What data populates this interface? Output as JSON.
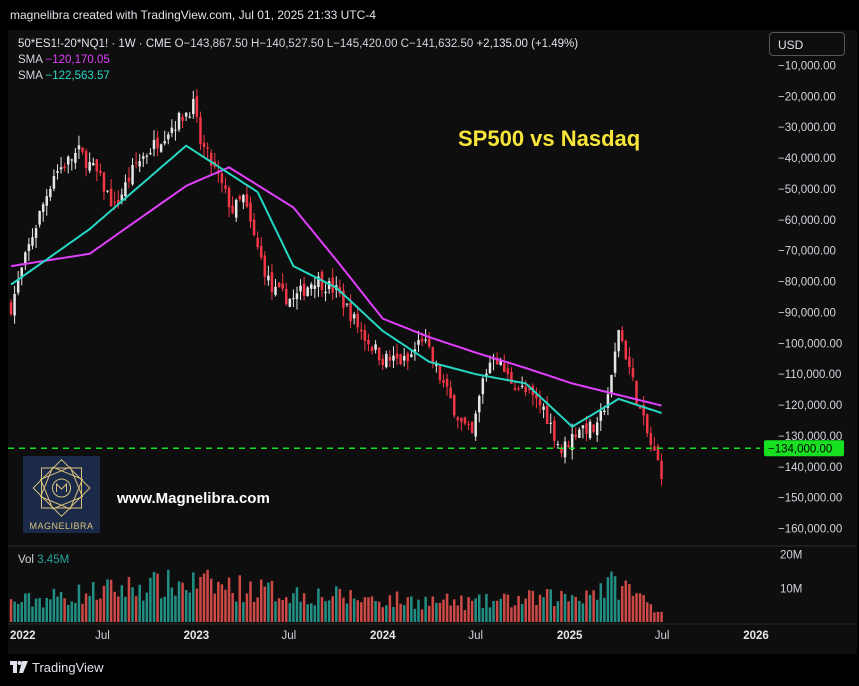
{
  "header": {
    "caption": "magnelibra created with TradingView.com, Jul 01, 2025 21:33 UTC-4"
  },
  "legend": {
    "symbol": "50*ES1!-20*NQ1! · 1W · CME",
    "open": "O−143,867.50",
    "high": "H−140,527.50",
    "low": "L−145,420.00",
    "close": "C−141,632.50",
    "change": "+2,135.00 (+1.49%)",
    "sma1_label": "SMA",
    "sma1_value": "−120,170.05",
    "sma2_label": "SMA",
    "sma2_value": "−122,563.57"
  },
  "currency_button": "USD",
  "annotations": {
    "title": "SP500 vs Nasdaq",
    "website": "www.Magnelibra.com",
    "logo_text": "MAGNELIBRA",
    "level_label": "−134,000.00"
  },
  "volume_legend": {
    "label": "Vol",
    "value": "3.45M"
  },
  "footer": {
    "brand": "TradingView"
  },
  "colors": {
    "up": "#e6e6e6",
    "down": "#f23645",
    "sma_fast": "#26d7c4",
    "sma_slow": "#e040fb",
    "level_line": "#16e020",
    "vol_up": "#26a69a",
    "vol_down": "#ef5350",
    "title": "#f7e53b"
  },
  "chart_data": {
    "type": "candlestick",
    "interval": "1W",
    "x_tick_labels": [
      "2022",
      "Jul",
      "2023",
      "Jul",
      "2024",
      "Jul",
      "2025",
      "Jul",
      "2026"
    ],
    "y_tick_labels": [
      "−10,000.00",
      "−20,000.00",
      "−30,000.00",
      "−40,000.00",
      "−50,000.00",
      "−60,000.00",
      "−70,000.00",
      "−80,000.00",
      "−90,000.00",
      "−100,000.00",
      "−110,000.00",
      "−120,000.00",
      "−130,000.00",
      "−140,000.00",
      "−150,000.00",
      "−160,000.00"
    ],
    "ylim": [
      -165000,
      -5000
    ],
    "volume_tick_labels": [
      "20M",
      "10M"
    ],
    "horizontal_level": -134000,
    "close_path": [
      {
        "date": "2022-01-03",
        "close": -88000
      },
      {
        "date": "2022-02-14",
        "close": -65000
      },
      {
        "date": "2022-03-28",
        "close": -45000
      },
      {
        "date": "2022-05-16",
        "close": -38000
      },
      {
        "date": "2022-06-20",
        "close": -45000
      },
      {
        "date": "2022-07-25",
        "close": -56000
      },
      {
        "date": "2022-09-05",
        "close": -42000
      },
      {
        "date": "2022-10-31",
        "close": -32000
      },
      {
        "date": "2022-12-26",
        "close": -23000
      },
      {
        "date": "2023-01-09",
        "close": -35000
      },
      {
        "date": "2023-02-06",
        "close": -44000
      },
      {
        "date": "2023-03-13",
        "close": -57000
      },
      {
        "date": "2023-04-03",
        "close": -53000
      },
      {
        "date": "2023-04-24",
        "close": -66000
      },
      {
        "date": "2023-05-29",
        "close": -83000
      },
      {
        "date": "2023-07-10",
        "close": -86000
      },
      {
        "date": "2023-08-21",
        "close": -79000
      },
      {
        "date": "2023-10-02",
        "close": -83000
      },
      {
        "date": "2023-11-27",
        "close": -98000
      },
      {
        "date": "2024-01-01",
        "close": -105000
      },
      {
        "date": "2024-02-19",
        "close": -106000
      },
      {
        "date": "2024-03-18",
        "close": -98000
      },
      {
        "date": "2024-04-22",
        "close": -111000
      },
      {
        "date": "2024-06-03",
        "close": -126000
      },
      {
        "date": "2024-06-24",
        "close": -130000
      },
      {
        "date": "2024-07-15",
        "close": -112000
      },
      {
        "date": "2024-08-05",
        "close": -103000
      },
      {
        "date": "2024-09-02",
        "close": -111000
      },
      {
        "date": "2024-10-07",
        "close": -116000
      },
      {
        "date": "2024-11-11",
        "close": -121000
      },
      {
        "date": "2024-12-16",
        "close": -135000
      },
      {
        "date": "2025-01-20",
        "close": -127000
      },
      {
        "date": "2025-02-24",
        "close": -128000
      },
      {
        "date": "2025-03-24",
        "close": -112000
      },
      {
        "date": "2025-04-07",
        "close": -95000
      },
      {
        "date": "2025-04-28",
        "close": -108000
      },
      {
        "date": "2025-05-19",
        "close": -122000
      },
      {
        "date": "2025-06-09",
        "close": -133000
      },
      {
        "date": "2025-06-30",
        "close": -141632.5
      }
    ],
    "sma_fast_path": [
      {
        "date": "2022-01-03",
        "value": -81000
      },
      {
        "date": "2022-06-06",
        "value": -63000
      },
      {
        "date": "2022-12-12",
        "value": -36000
      },
      {
        "date": "2023-05-01",
        "value": -51000
      },
      {
        "date": "2023-07-10",
        "value": -75000
      },
      {
        "date": "2023-10-02",
        "value": -82000
      },
      {
        "date": "2024-01-01",
        "value": -96000
      },
      {
        "date": "2024-04-01",
        "value": -106000
      },
      {
        "date": "2024-07-01",
        "value": -110000
      },
      {
        "date": "2024-10-07",
        "value": -113000
      },
      {
        "date": "2025-01-06",
        "value": -127000
      },
      {
        "date": "2025-04-07",
        "value": -118000
      },
      {
        "date": "2025-06-30",
        "value": -122563.57
      }
    ],
    "sma_slow_path": [
      {
        "date": "2022-01-03",
        "value": -75000
      },
      {
        "date": "2022-06-06",
        "value": -71000
      },
      {
        "date": "2022-12-12",
        "value": -49000
      },
      {
        "date": "2023-03-06",
        "value": -43000
      },
      {
        "date": "2023-07-10",
        "value": -56000
      },
      {
        "date": "2023-10-02",
        "value": -73000
      },
      {
        "date": "2024-01-01",
        "value": -92000
      },
      {
        "date": "2024-04-01",
        "value": -98000
      },
      {
        "date": "2024-07-01",
        "value": -103000
      },
      {
        "date": "2024-10-07",
        "value": -108000
      },
      {
        "date": "2025-01-06",
        "value": -113000
      },
      {
        "date": "2025-06-30",
        "value": -120170.05
      }
    ],
    "volume_path": [
      {
        "date": "2022-01-03",
        "volume": 6000000
      },
      {
        "date": "2022-09-05",
        "volume": 11000000
      },
      {
        "date": "2023-01-02",
        "volume": 12000000
      },
      {
        "date": "2023-07-03",
        "volume": 9000000
      },
      {
        "date": "2024-01-01",
        "volume": 7000000
      },
      {
        "date": "2024-07-01",
        "volume": 6000000
      },
      {
        "date": "2025-01-06",
        "volume": 8000000
      },
      {
        "date": "2025-04-07",
        "volume": 12000000
      },
      {
        "date": "2025-06-30",
        "volume": 3450000
      }
    ],
    "volume_ylim": [
      0,
      22000000
    ]
  }
}
